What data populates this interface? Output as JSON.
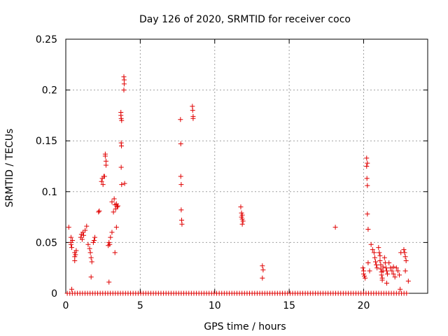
{
  "chart_data": {
    "type": "scatter",
    "title": "Day 126 of 2020, SRMTID for receiver coco",
    "xlabel": "GPS time / hours",
    "ylabel": "SRMTID / TECUs",
    "xlim": [
      0,
      24.3
    ],
    "ylim": [
      0,
      0.25
    ],
    "xticks": [
      0,
      5,
      10,
      15,
      20
    ],
    "xtick_labels": [
      "0",
      "5",
      "10",
      "15",
      "20"
    ],
    "yticks": [
      0,
      0.05,
      0.1,
      0.15,
      0.2,
      0.25
    ],
    "ytick_labels": [
      "0",
      "0.05",
      "0.1",
      "0.15",
      "0.2",
      "0.25"
    ],
    "grid": true,
    "marker": "+",
    "color": "#e00000",
    "baseline": {
      "y": 0,
      "x_start": 0.1,
      "x_end": 23.0,
      "step": 0.17
    },
    "series": [
      {
        "name": "SRMTID",
        "points": [
          [
            0.2,
            0.065
          ],
          [
            0.35,
            0.055
          ],
          [
            0.35,
            0.05
          ],
          [
            0.35,
            0.048
          ],
          [
            0.4,
            0.045
          ],
          [
            0.45,
            0.052
          ],
          [
            0.4,
            0.004
          ],
          [
            0.6,
            0.04
          ],
          [
            0.6,
            0.036
          ],
          [
            0.6,
            0.032
          ],
          [
            0.65,
            0.038
          ],
          [
            0.7,
            0.042
          ],
          [
            1.0,
            0.055
          ],
          [
            1.05,
            0.058
          ],
          [
            1.1,
            0.053
          ],
          [
            1.15,
            0.06
          ],
          [
            1.2,
            0.057
          ],
          [
            1.3,
            0.062
          ],
          [
            1.4,
            0.066
          ],
          [
            1.5,
            0.048
          ],
          [
            1.6,
            0.044
          ],
          [
            1.65,
            0.04
          ],
          [
            1.7,
            0.035
          ],
          [
            1.75,
            0.031
          ],
          [
            1.7,
            0.016
          ],
          [
            1.85,
            0.05
          ],
          [
            1.9,
            0.052
          ],
          [
            1.95,
            0.055
          ],
          [
            2.2,
            0.08
          ],
          [
            2.25,
            0.081
          ],
          [
            2.4,
            0.11
          ],
          [
            2.45,
            0.113
          ],
          [
            2.5,
            0.107
          ],
          [
            2.55,
            0.115
          ],
          [
            2.6,
            0.115
          ],
          [
            2.65,
            0.137
          ],
          [
            2.65,
            0.135
          ],
          [
            2.7,
            0.13
          ],
          [
            2.7,
            0.126
          ],
          [
            2.85,
            0.047
          ],
          [
            2.9,
            0.05
          ],
          [
            2.95,
            0.048
          ],
          [
            3.0,
            0.055
          ],
          [
            3.1,
            0.06
          ],
          [
            3.1,
            0.09
          ],
          [
            3.2,
            0.08
          ],
          [
            3.25,
            0.093
          ],
          [
            3.3,
            0.087
          ],
          [
            3.35,
            0.083
          ],
          [
            3.4,
            0.088
          ],
          [
            3.45,
            0.085
          ],
          [
            3.5,
            0.086
          ],
          [
            3.4,
            0.065
          ],
          [
            3.3,
            0.04
          ],
          [
            2.9,
            0.011
          ],
          [
            3.7,
            0.178
          ],
          [
            3.7,
            0.175
          ],
          [
            3.72,
            0.172
          ],
          [
            3.75,
            0.17
          ],
          [
            3.72,
            0.148
          ],
          [
            3.74,
            0.145
          ],
          [
            3.72,
            0.124
          ],
          [
            3.75,
            0.107
          ],
          [
            3.9,
            0.213
          ],
          [
            3.92,
            0.21
          ],
          [
            3.92,
            0.206
          ],
          [
            3.9,
            0.2
          ],
          [
            3.95,
            0.108
          ],
          [
            7.7,
            0.171
          ],
          [
            7.72,
            0.147
          ],
          [
            7.72,
            0.115
          ],
          [
            7.75,
            0.107
          ],
          [
            7.75,
            0.082
          ],
          [
            7.78,
            0.072
          ],
          [
            7.8,
            0.068
          ],
          [
            8.5,
            0.184
          ],
          [
            8.52,
            0.18
          ],
          [
            8.55,
            0.174
          ],
          [
            8.55,
            0.172
          ],
          [
            11.75,
            0.085
          ],
          [
            11.8,
            0.079
          ],
          [
            11.85,
            0.077
          ],
          [
            11.8,
            0.075
          ],
          [
            11.85,
            0.073
          ],
          [
            11.9,
            0.071
          ],
          [
            11.85,
            0.068
          ],
          [
            13.2,
            0.027
          ],
          [
            13.25,
            0.023
          ],
          [
            13.2,
            0.015
          ],
          [
            18.1,
            0.065
          ],
          [
            19.95,
            0.025
          ],
          [
            20.0,
            0.022
          ],
          [
            20.0,
            0.019
          ],
          [
            20.05,
            0.017
          ],
          [
            20.1,
            0.015
          ],
          [
            20.2,
            0.133
          ],
          [
            20.25,
            0.128
          ],
          [
            20.2,
            0.125
          ],
          [
            20.22,
            0.113
          ],
          [
            20.25,
            0.106
          ],
          [
            20.25,
            0.078
          ],
          [
            20.3,
            0.063
          ],
          [
            20.5,
            0.048
          ],
          [
            20.6,
            0.043
          ],
          [
            20.7,
            0.04
          ],
          [
            20.75,
            0.035
          ],
          [
            20.8,
            0.031
          ],
          [
            20.85,
            0.028
          ],
          [
            20.9,
            0.025
          ],
          [
            21.0,
            0.045
          ],
          [
            21.05,
            0.04
          ],
          [
            21.1,
            0.037
          ],
          [
            21.1,
            0.032
          ],
          [
            21.15,
            0.028
          ],
          [
            21.15,
            0.024
          ],
          [
            21.2,
            0.021
          ],
          [
            21.2,
            0.018
          ],
          [
            21.25,
            0.015
          ],
          [
            21.25,
            0.013
          ],
          [
            21.3,
            0.026
          ],
          [
            21.3,
            0.022
          ],
          [
            21.4,
            0.035
          ],
          [
            21.45,
            0.03
          ],
          [
            21.5,
            0.025
          ],
          [
            21.55,
            0.022
          ],
          [
            21.6,
            0.019
          ],
          [
            21.55,
            0.01
          ],
          [
            21.8,
            0.025
          ],
          [
            21.9,
            0.022
          ],
          [
            22.0,
            0.019
          ],
          [
            22.1,
            0.016
          ],
          [
            22.2,
            0.025
          ],
          [
            22.3,
            0.022
          ],
          [
            22.4,
            0.018
          ],
          [
            22.45,
            0.004
          ],
          [
            22.7,
            0.043
          ],
          [
            22.75,
            0.04
          ],
          [
            22.8,
            0.036
          ],
          [
            22.85,
            0.032
          ],
          [
            22.8,
            0.022
          ],
          [
            23.0,
            0.012
          ],
          [
            22.5,
            0.04
          ],
          [
            20.4,
            0.022
          ],
          [
            20.3,
            0.03
          ],
          [
            21.7,
            0.03
          ],
          [
            22.0,
            0.026
          ]
        ]
      }
    ]
  }
}
